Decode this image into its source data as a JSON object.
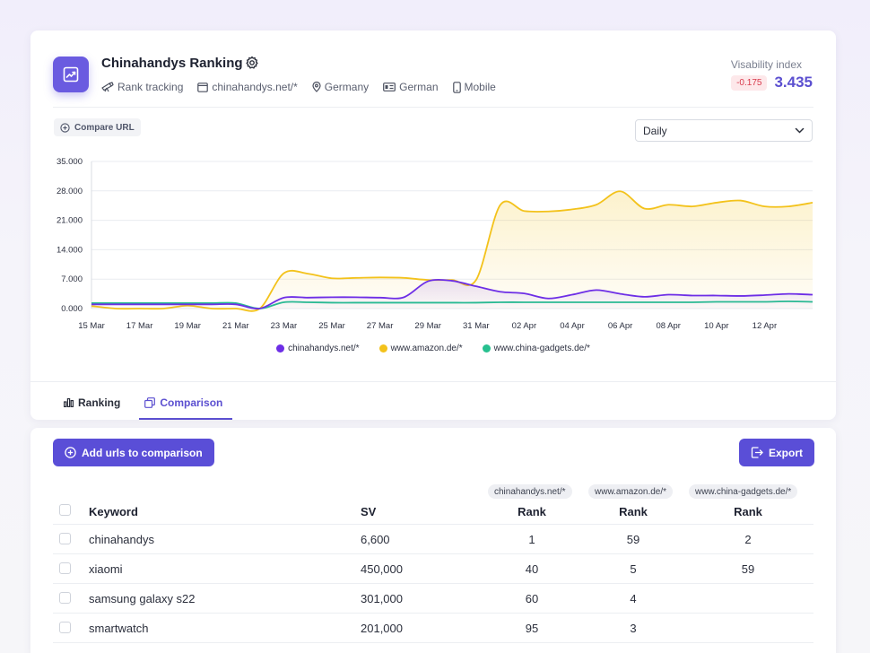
{
  "header": {
    "title": "Chinahandys Ranking",
    "meta": [
      {
        "icon": "telescope-icon",
        "label": "Rank tracking"
      },
      {
        "icon": "browser-icon",
        "label": "chinahandys.net/*"
      },
      {
        "icon": "location-pin-icon",
        "label": "Germany"
      },
      {
        "icon": "language-card-icon",
        "label": "German"
      },
      {
        "icon": "mobile-icon",
        "label": "Mobile"
      }
    ],
    "visibility_label": "Visability index",
    "visibility_delta": "-0.175",
    "visibility_value": "3.435"
  },
  "controls": {
    "compare_label": "Compare URL",
    "period_select": "Daily"
  },
  "colors": {
    "accent": "#5a4ed7",
    "chinahandys": "#6d2ee6",
    "amazon": "#f3c21b",
    "chinagadgets": "#27c08f"
  },
  "chart_data": {
    "type": "line",
    "x": [
      "15 Mar",
      "16 Mar",
      "17 Mar",
      "18 Mar",
      "19 Mar",
      "20 Mar",
      "21 Mar",
      "22 Mar",
      "23 Mar",
      "24 Mar",
      "25 Mar",
      "26 Mar",
      "27 Mar",
      "28 Mar",
      "29 Mar",
      "30 Mar",
      "31 Mar",
      "01 Apr",
      "02 Apr",
      "03 Apr",
      "04 Apr",
      "05 Apr",
      "06 Apr",
      "07 Apr",
      "08 Apr",
      "09 Apr",
      "10 Apr",
      "11 Apr",
      "12 Apr",
      "13 Apr",
      "14 Apr"
    ],
    "tick_labels": [
      "15 Mar",
      "17 Mar",
      "19 Mar",
      "21 Mar",
      "23 Mar",
      "25 Mar",
      "27 Mar",
      "29 Mar",
      "31 Mar",
      "02 Apr",
      "04 Apr",
      "06 Apr",
      "08 Apr",
      "10 Apr",
      "12 Apr"
    ],
    "y_tick_labels": [
      "35.000",
      "28.000",
      "21.000",
      "14.000",
      "7.000",
      "0.000"
    ],
    "ylim": [
      0,
      35000
    ],
    "grid": true,
    "legend_position": "bottom",
    "series": [
      {
        "name": "chinahandys.net/*",
        "color": "#6d2ee6",
        "values": [
          1000,
          1000,
          1000,
          1000,
          1000,
          1000,
          1000,
          0,
          2600,
          2600,
          2700,
          2700,
          2600,
          2700,
          6500,
          6600,
          5300,
          4000,
          3600,
          2400,
          3300,
          4400,
          3500,
          2800,
          3300,
          3100,
          3100,
          3000,
          3200,
          3500,
          3300
        ]
      },
      {
        "name": "www.amazon.de/*",
        "color": "#f3c21b",
        "values": [
          600,
          0,
          0,
          0,
          700,
          0,
          0,
          0,
          8400,
          8300,
          7200,
          7300,
          7400,
          7300,
          6800,
          6800,
          6800,
          24600,
          23200,
          23100,
          23600,
          24700,
          27900,
          23800,
          24700,
          24300,
          25200,
          25700,
          24300,
          24300,
          25200
        ]
      },
      {
        "name": "www.china-gadgets.de/*",
        "color": "#27c08f",
        "values": [
          1300,
          1300,
          1300,
          1300,
          1300,
          1300,
          1300,
          0,
          1500,
          1500,
          1400,
          1400,
          1400,
          1400,
          1400,
          1400,
          1400,
          1500,
          1500,
          1500,
          1500,
          1500,
          1500,
          1500,
          1500,
          1500,
          1600,
          1600,
          1600,
          1700,
          1600
        ]
      }
    ]
  },
  "tabs": [
    {
      "label": "Ranking",
      "icon": "bar-chart-icon",
      "active": false
    },
    {
      "label": "Comparison",
      "icon": "copy-icon",
      "active": true
    }
  ],
  "actions": {
    "add_urls": "Add urls to comparison",
    "export": "Export"
  },
  "table": {
    "url_pills": [
      "chinahandys.net/*",
      "www.amazon.de/*",
      "www.china-gadgets.de/*"
    ],
    "headers": {
      "keyword": "Keyword",
      "sv": "SV",
      "rank1": "Rank",
      "rank2": "Rank",
      "rank3": "Rank"
    },
    "rows": [
      {
        "keyword": "chinahandys",
        "sv": "6,600",
        "rank1": "1",
        "rank2": "59",
        "rank3": "2"
      },
      {
        "keyword": "xiaomi",
        "sv": "450,000",
        "rank1": "40",
        "rank2": "5",
        "rank3": "59"
      },
      {
        "keyword": "samsung galaxy s22",
        "sv": "301,000",
        "rank1": "60",
        "rank2": "4",
        "rank3": ""
      },
      {
        "keyword": "smartwatch",
        "sv": "201,000",
        "rank1": "95",
        "rank2": "3",
        "rank3": ""
      }
    ]
  }
}
